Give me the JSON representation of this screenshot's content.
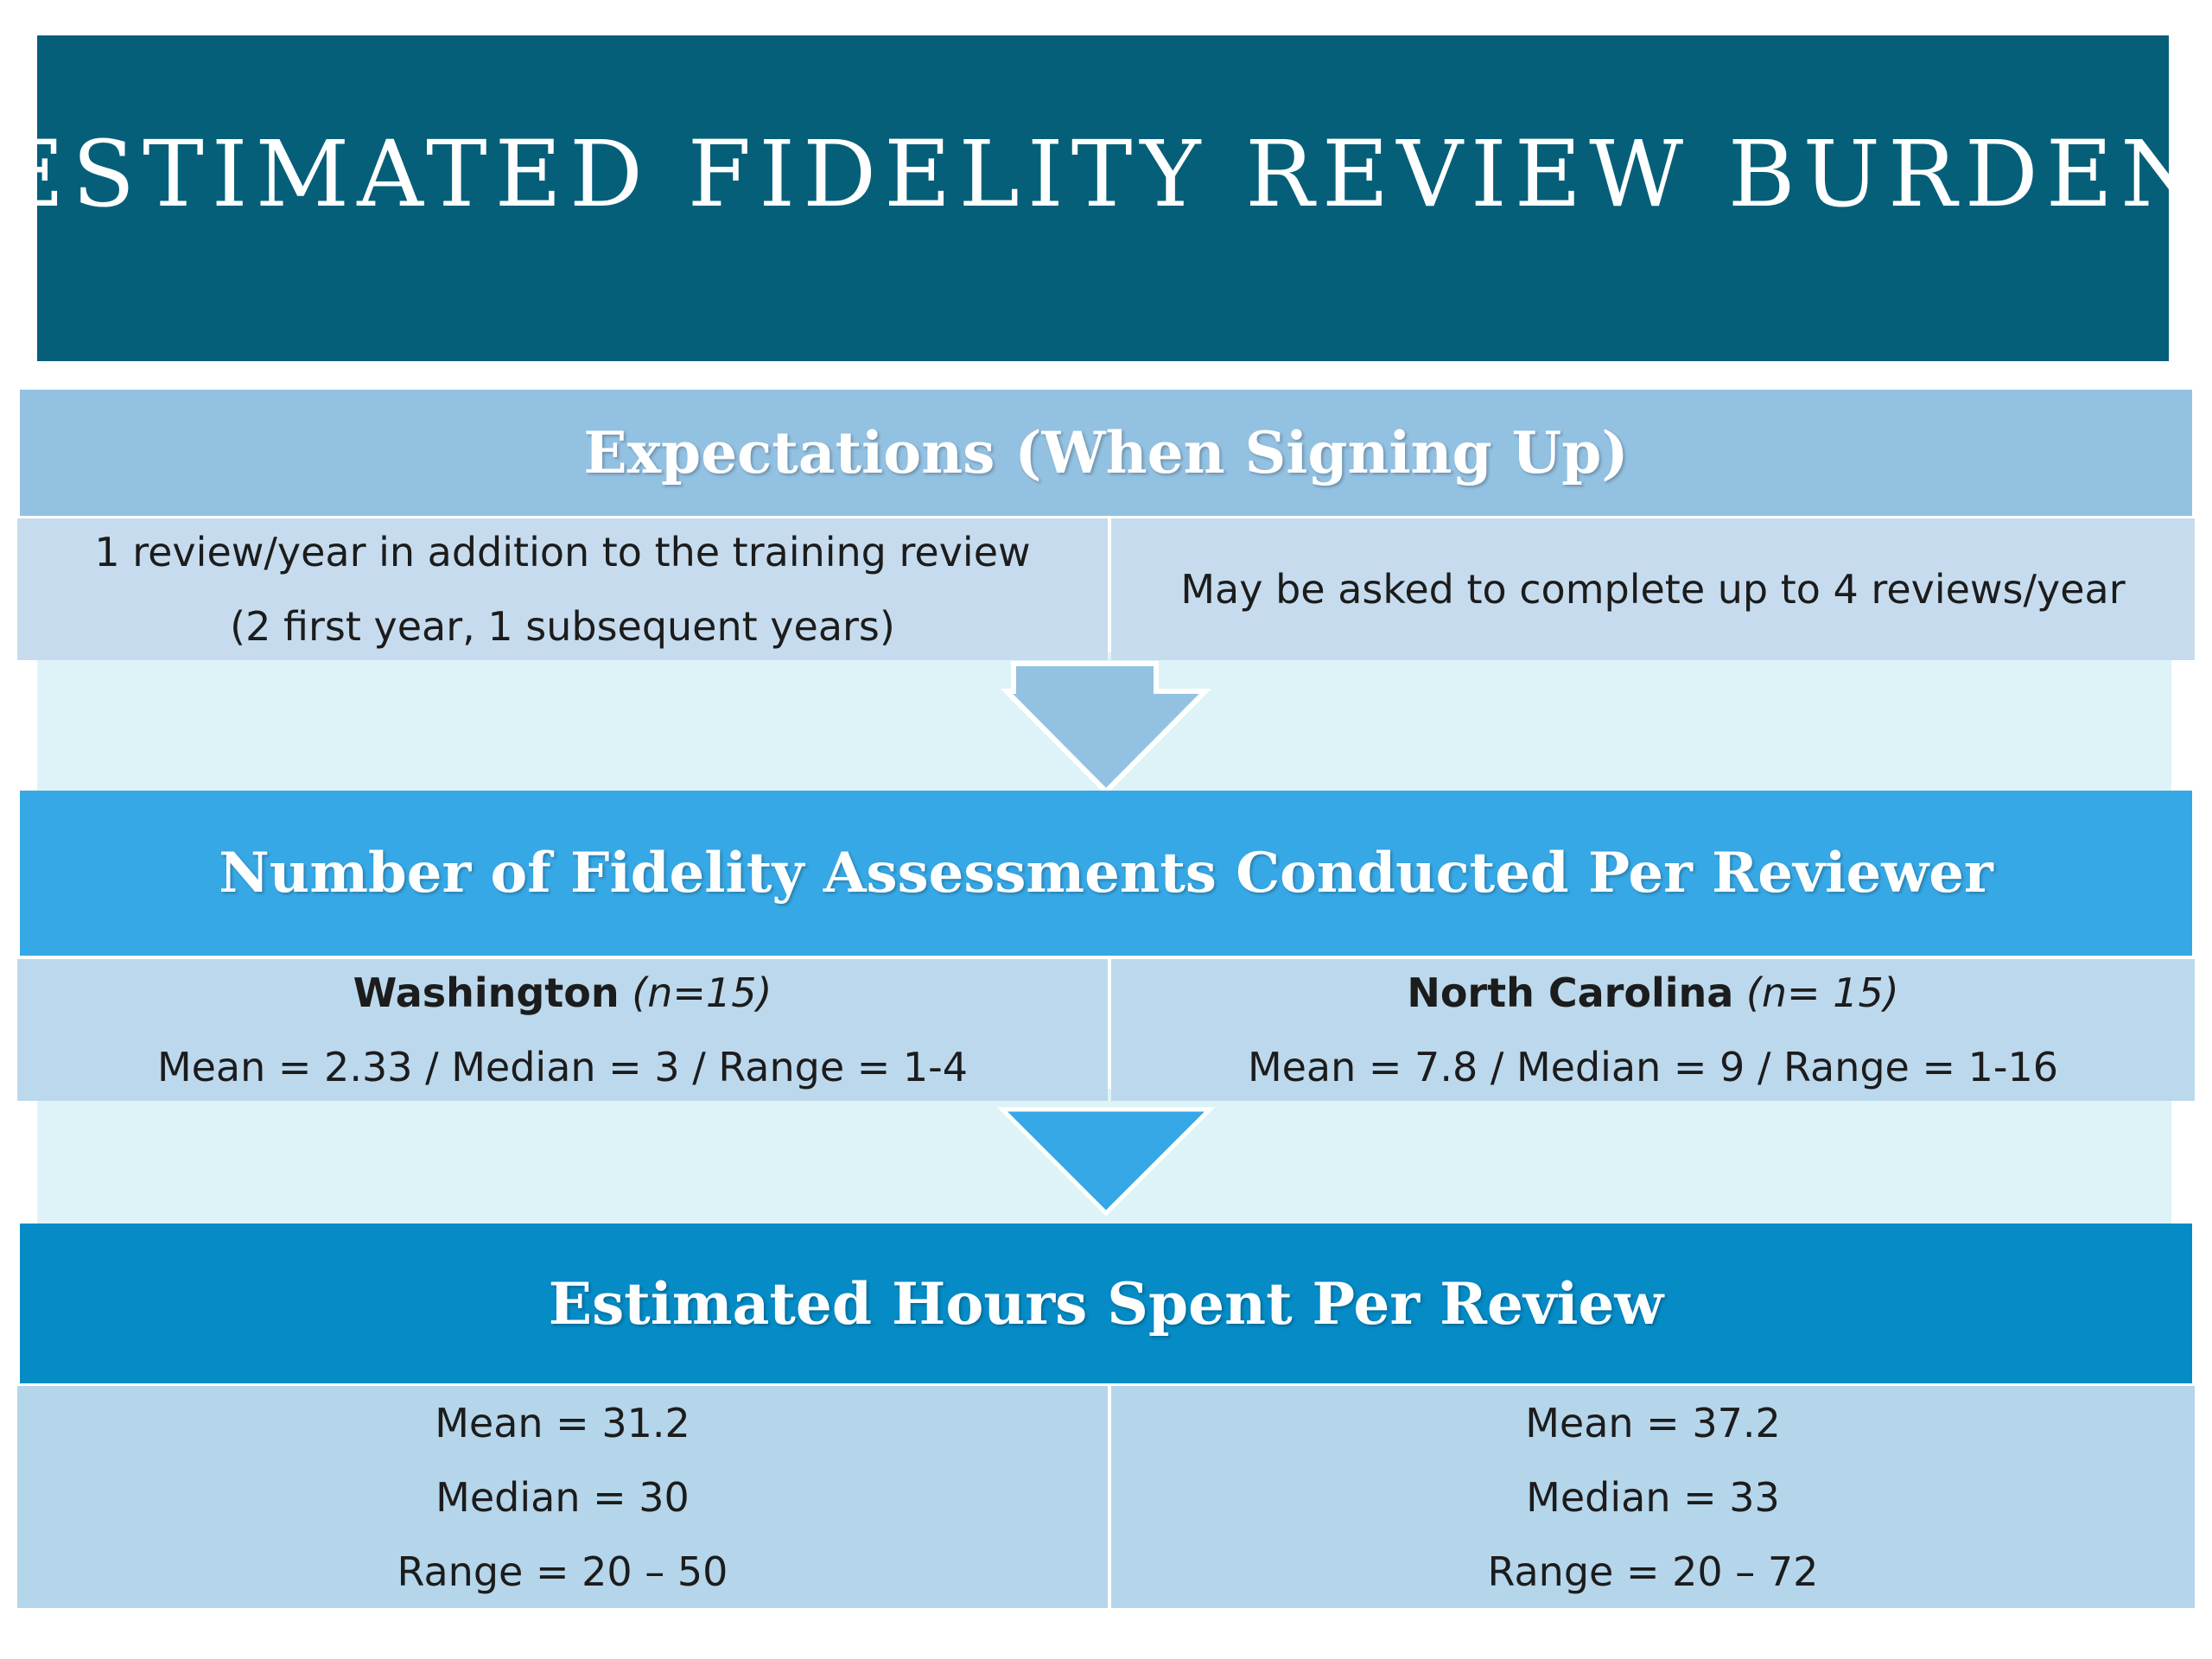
{
  "title": "ESTIMATED FIDELITY REVIEW BURDEN",
  "sections": [
    {
      "heading": "Expectations (When Signing Up)",
      "left": {
        "line1": "1 review/year in addition to the training review",
        "line2": "(2 first year, 1 subsequent years)"
      },
      "right": {
        "line1": "May be asked to complete up to 4 reviews/year"
      }
    },
    {
      "heading": "Number of Fidelity Assessments Conducted Per Reviewer",
      "left": {
        "state": "Washington",
        "n": "(n=15)",
        "stats": "Mean = 2.33 / Median = 3 / Range = 1-4"
      },
      "right": {
        "state": "North Carolina",
        "n": "(n= 15)",
        "stats": "Mean = 7.8 / Median = 9 / Range = 1-16"
      }
    },
    {
      "heading": "Estimated Hours Spent Per Review",
      "left": {
        "mean": "Mean = 31.2",
        "median": "Median = 30",
        "range": "Range = 20 – 50"
      },
      "right": {
        "mean": "Mean = 37.2",
        "median": "Median = 33",
        "range": "Range = 20 – 72"
      }
    }
  ],
  "colors": {
    "title_bg": "#055f79",
    "section1_header": "#93c1e2",
    "section1_panel": "#c6dcee",
    "section2_header": "#37a8e6",
    "section2_panel": "#bcd8ed",
    "section3_header": "#058bc6",
    "section3_panel": "#b5d5ea",
    "channel": "#ddf3f7"
  }
}
